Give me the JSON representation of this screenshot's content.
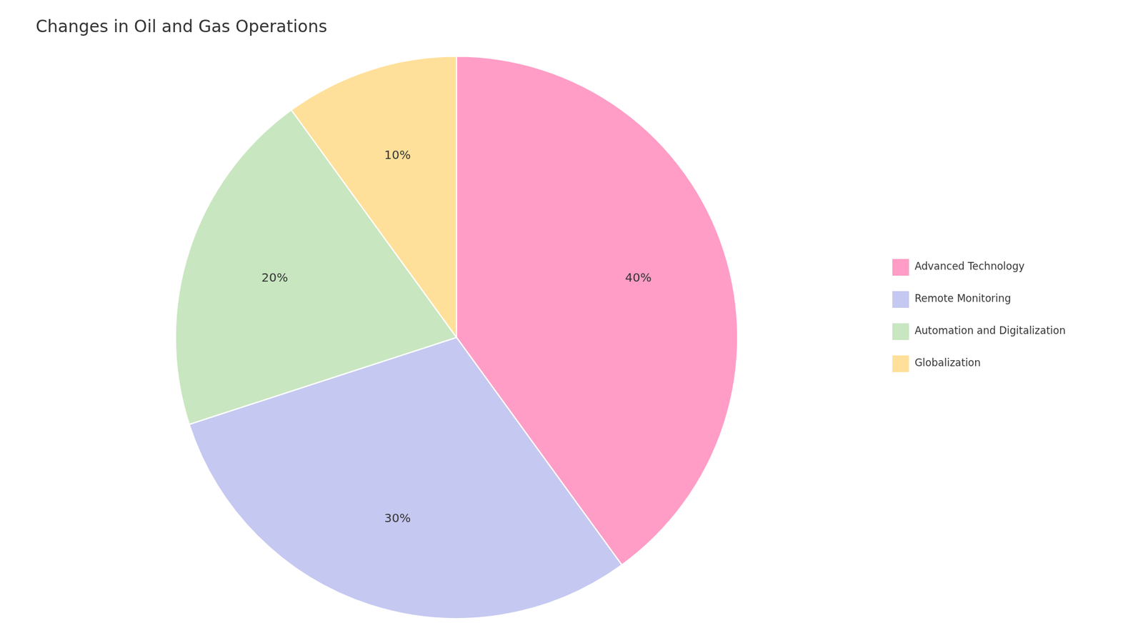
{
  "chart_data": {
    "type": "pie",
    "title": "Changes in Oil and Gas Operations",
    "categories": [
      "Advanced Technology",
      "Remote Monitoring",
      "Automation and Digitalization",
      "Globalization"
    ],
    "values": [
      40,
      30,
      20,
      10
    ],
    "value_labels": [
      "40%",
      "30%",
      "20%",
      "10%"
    ],
    "colors": [
      "#FF9DC6",
      "#C5C8F0",
      "#C8E6C0",
      "#FFE09A"
    ],
    "legend": "right",
    "data_labels": true
  }
}
